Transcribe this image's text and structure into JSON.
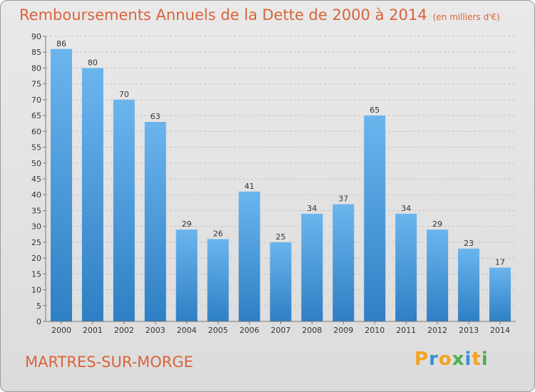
{
  "title": "Remboursements Annuels de la Dette de 2000 à 2014",
  "unit_note": "(en milliers d'€)",
  "commune": "MARTRES-SUR-MORGE",
  "brand": {
    "letters": [
      "P",
      "r",
      "o",
      "x",
      "i",
      "t",
      "i"
    ],
    "colors": [
      "#f3a21f",
      "#3a8fd6",
      "#f3a21f",
      "#4caf50",
      "#3a8fd6",
      "#f3a21f",
      "#4caf50"
    ]
  },
  "colors": {
    "bar_light": "#6bb5ee",
    "bar_dark": "#2e7fc4",
    "accent": "#d9643a"
  },
  "chart_data": {
    "type": "bar",
    "categories": [
      "2000",
      "2001",
      "2002",
      "2003",
      "2004",
      "2005",
      "2006",
      "2007",
      "2008",
      "2009",
      "2010",
      "2011",
      "2012",
      "2013",
      "2014"
    ],
    "values": [
      86,
      80,
      70,
      63,
      29,
      26,
      41,
      25,
      34,
      37,
      65,
      34,
      29,
      23,
      17
    ],
    "ylim": [
      0,
      90
    ],
    "yticks": [
      0,
      5,
      10,
      15,
      20,
      25,
      30,
      35,
      40,
      45,
      50,
      55,
      60,
      65,
      70,
      75,
      80,
      85,
      90
    ],
    "grid": true
  }
}
